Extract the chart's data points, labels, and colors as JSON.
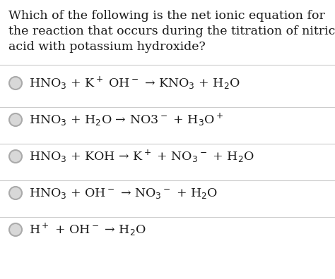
{
  "background_color": "#ffffff",
  "question_text": [
    "Which of the following is the net ionic equation for",
    "the reaction that occurs during the titration of nitric",
    "acid with potassium hydroxide?"
  ],
  "question_fontsize": 12.5,
  "options": [
    "HNO$_3$ + K$^+$ OH$^-$ → KNO$_3$ + H$_2$O",
    "HNO$_3$ + H$_2$O → NO3$^-$ + H$_3$O$^+$",
    "HNO$_3$ + KOH → K$^+$ + NO$_3$$^-$ + H$_2$O",
    "HNO$_3$ + OH$^-$ → NO$_3$$^-$ + H$_2$O",
    "H$^+$ + OH$^-$ → H$_2$O"
  ],
  "option_fontsize": 12.5,
  "text_color": "#1a1a1a",
  "circle_edge_color": "#aaaaaa",
  "circle_face_color": "#d8d8d8",
  "line_color": "#cccccc",
  "figsize": [
    4.74,
    3.96
  ],
  "dpi": 100
}
